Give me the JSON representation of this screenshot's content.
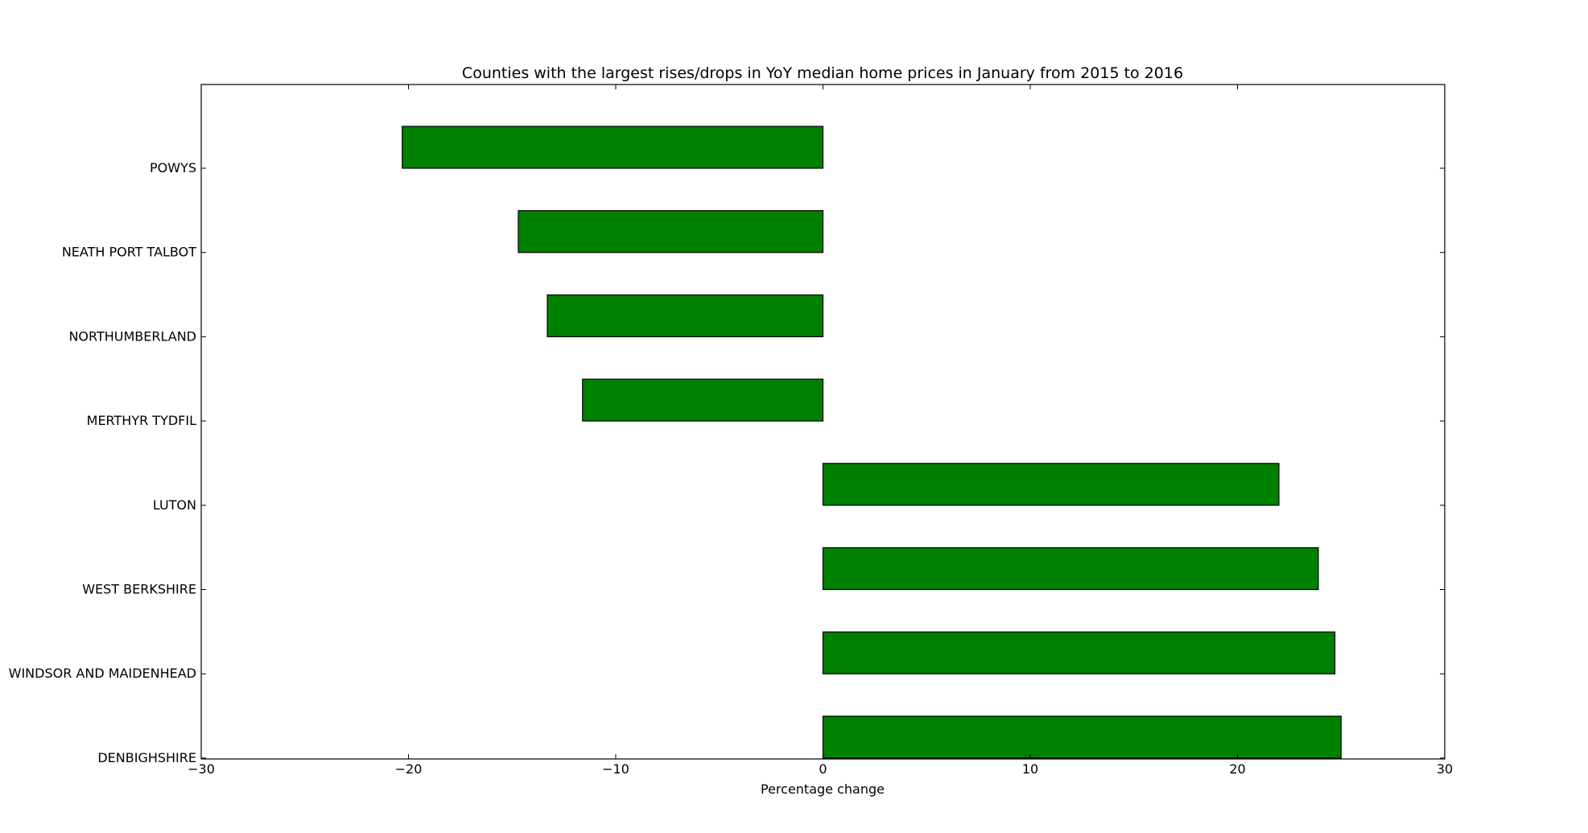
{
  "chart_data": {
    "type": "bar",
    "orientation": "horizontal",
    "title": "Counties with the largest rises/drops in YoY median home prices in January from 2015 to 2016",
    "xlabel": "Percentage change",
    "ylabel": "",
    "xlim": [
      -30,
      30
    ],
    "xticks": [
      -30,
      -20,
      -10,
      0,
      10,
      20,
      30
    ],
    "xtick_labels": [
      "−30",
      "−20",
      "−10",
      "0",
      "10",
      "20",
      "30"
    ],
    "categories": [
      "POWYS",
      "NEATH PORT TALBOT",
      "NORTHUMBERLAND",
      "MERTHYR TYDFIL",
      "LUTON",
      "WEST BERKSHIRE",
      "WINDSOR AND MAIDENHEAD",
      "DENBIGHSHIRE"
    ],
    "values": [
      -20.3,
      -14.7,
      -13.3,
      -11.6,
      22.0,
      23.9,
      24.7,
      25.0
    ],
    "grid": false,
    "bar_color": "#008000",
    "bar_edge_color": "#000000"
  }
}
